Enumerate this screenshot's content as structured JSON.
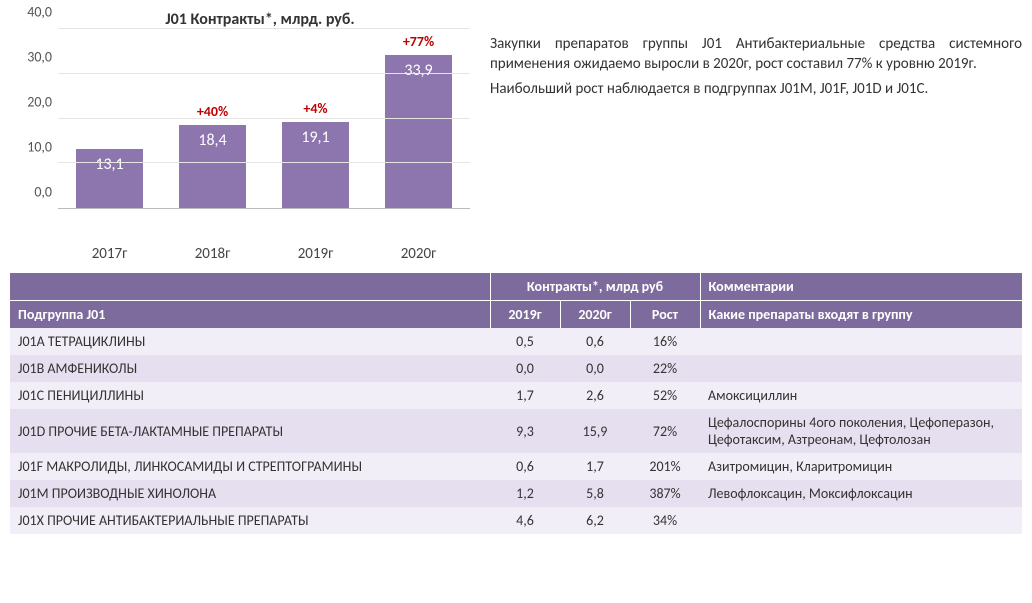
{
  "chart": {
    "title": "J01 Контракты*, млрд. руб.",
    "type": "bar",
    "categories": [
      "2017г",
      "2018г",
      "2019г",
      "2020г"
    ],
    "values_display": [
      "13,1",
      "18,4",
      "19,1",
      "33,9"
    ],
    "values_num": [
      13.1,
      18.4,
      19.1,
      33.9
    ],
    "growth_labels": [
      "",
      "+40%",
      "+4%",
      "+77%"
    ],
    "bar_color": "#8d76ad",
    "growth_color": "#c00000",
    "value_color": "#ffffff",
    "ylim": [
      0,
      40
    ],
    "ytick_step": 10,
    "yticks": [
      "0,0",
      "10,0",
      "20,0",
      "30,0",
      "40,0"
    ],
    "grid_color": "#e5e5e5",
    "background_color": "#ffffff",
    "title_fontsize": 16,
    "label_fontsize": 14
  },
  "text": {
    "p1": "Закупки препаратов группы J01 Антибактериальные средства системного применения ожидаемо выросли в 2020г, рост составил 77% к уровню 2019г.",
    "p2": "Наибольший рост наблюдается в подгруппах J01M, J01F, J01D и J01C."
  },
  "table": {
    "header_bg": "#7e6b9e",
    "row_odd_bg": "#f2eef7",
    "row_even_bg": "#e6dfef",
    "hdr1": {
      "blank": "",
      "contracts": "Контракты*, млрд руб",
      "comments": "Комментарии"
    },
    "hdr2": {
      "subgroup": "Подгруппа J01",
      "y2019": "2019г",
      "y2020": "2020г",
      "growth": "Рост",
      "drugs": "Какие препараты входят в группу"
    },
    "rows": [
      {
        "name": "J01A ТЕТРАЦИКЛИНЫ",
        "y2019": "0,5",
        "y2020": "0,6",
        "growth": "16%",
        "comment": ""
      },
      {
        "name": "J01B АМФЕНИКОЛЫ",
        "y2019": "0,0",
        "y2020": "0,0",
        "growth": "22%",
        "comment": ""
      },
      {
        "name": "J01C ПЕНИЦИЛЛИНЫ",
        "y2019": "1,7",
        "y2020": "2,6",
        "growth": "52%",
        "comment": "Амоксициллин"
      },
      {
        "name": "J01D ПРОЧИЕ БЕТА-ЛАКТАМНЫЕ ПРЕПАРАТЫ",
        "y2019": "9,3",
        "y2020": "15,9",
        "growth": "72%",
        "comment": "Цефалоспорины 4ого поколения, Цефоперазон, Цефотаксим, Азтреонам, Цефтолозан"
      },
      {
        "name": "J01F МАКРОЛИДЫ, ЛИНКОСАМИДЫ И СТРЕПТОГРАМИНЫ",
        "y2019": "0,6",
        "y2020": "1,7",
        "growth": "201%",
        "comment": "Азитромицин, Кларитромицин"
      },
      {
        "name": "J01M ПРОИЗВОДНЫЕ ХИНОЛОНА",
        "y2019": "1,2",
        "y2020": "5,8",
        "growth": "387%",
        "comment": "Левофлоксацин, Моксифлоксацин"
      },
      {
        "name": "J01X ПРОЧИЕ АНТИБАКТЕРИАЛЬНЫЕ ПРЕПАРАТЫ",
        "y2019": "4,6",
        "y2020": "6,2",
        "growth": "34%",
        "comment": ""
      }
    ]
  }
}
